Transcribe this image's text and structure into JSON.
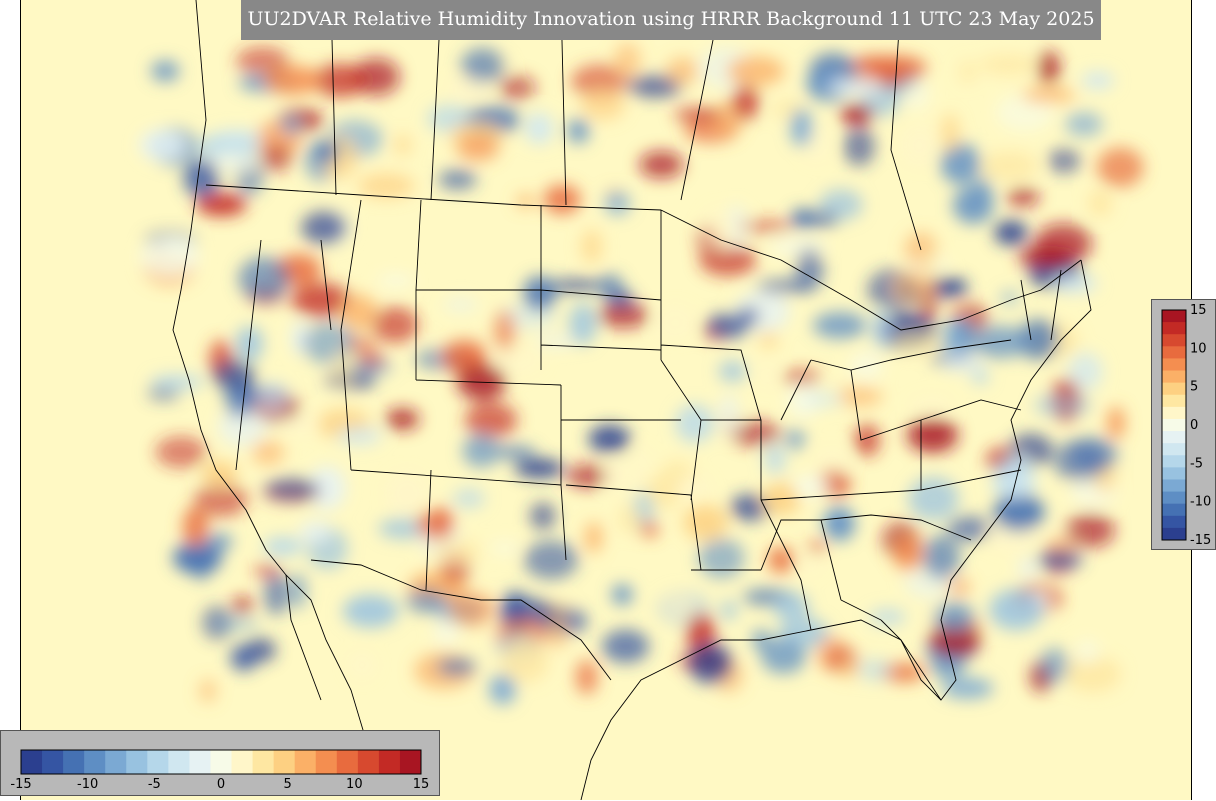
{
  "title": "UU2DVAR Relative Humidity Innovation using HRRR Background 11 UTC 23 May 2025",
  "colorbar": {
    "min": -15,
    "max": 15,
    "horizontal_ticks": [
      "-15",
      "-10",
      "-5",
      "0",
      "5",
      "10",
      "15"
    ],
    "vertical_ticks": [
      "15",
      "10",
      "5",
      "0",
      "-5",
      "-10",
      "-15"
    ],
    "colors": [
      "#2b3f8f",
      "#3555a3",
      "#4571b3",
      "#5e8ec4",
      "#7ba9d3",
      "#98c2e0",
      "#b5d7ea",
      "#d0e7f0",
      "#e6f2f3",
      "#f7fbe8",
      "#fff6c9",
      "#fee7a2",
      "#fdd082",
      "#fbb067",
      "#f48e50",
      "#e86b3e",
      "#d7492f",
      "#c32a25",
      "#a81522"
    ],
    "neutral": "#fff9c4"
  },
  "map": {
    "background": "#fff9c4",
    "border_color": "#000000"
  }
}
